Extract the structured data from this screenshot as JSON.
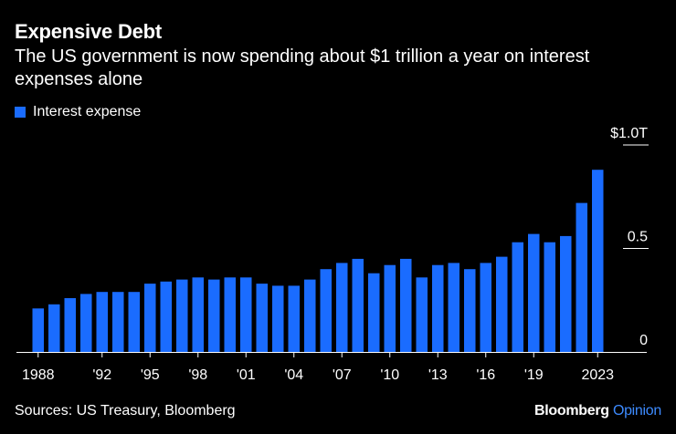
{
  "header": {
    "title": "Expensive Debt",
    "subtitle": "The US government is now spending about $1 trillion a year on interest expenses alone"
  },
  "footer": {
    "source": "Sources: US Treasury, Bloomberg",
    "brand_name": "Bloomberg",
    "brand_section": "Opinion"
  },
  "colors": {
    "bar": "#1a6cff",
    "background": "#000000",
    "text": "#ffffff",
    "brand_accent": "#3d8bff"
  },
  "chart_data": {
    "type": "bar",
    "title": "Expensive Debt",
    "subtitle": "The US government is now spending about $1 trillion a year on interest expenses alone",
    "legend": {
      "position": "top-left",
      "entries": [
        "Interest expense"
      ]
    },
    "categories": [
      "1988",
      "1989",
      "1990",
      "1991",
      "1992",
      "1993",
      "1994",
      "1995",
      "1996",
      "1997",
      "1998",
      "1999",
      "2000",
      "2001",
      "2002",
      "2003",
      "2004",
      "2005",
      "2006",
      "2007",
      "2008",
      "2009",
      "2010",
      "2011",
      "2012",
      "2013",
      "2014",
      "2015",
      "2016",
      "2017",
      "2018",
      "2019",
      "2020",
      "2021",
      "2022",
      "2023"
    ],
    "series": [
      {
        "name": "Interest expense",
        "values": [
          0.21,
          0.23,
          0.26,
          0.28,
          0.29,
          0.29,
          0.29,
          0.33,
          0.34,
          0.35,
          0.36,
          0.35,
          0.36,
          0.36,
          0.33,
          0.32,
          0.32,
          0.35,
          0.4,
          0.43,
          0.45,
          0.38,
          0.42,
          0.45,
          0.36,
          0.42,
          0.43,
          0.4,
          0.43,
          0.46,
          0.53,
          0.57,
          0.53,
          0.56,
          0.72,
          0.88
        ]
      }
    ],
    "x_tick_labels": [
      {
        "index": 0,
        "label": "1988"
      },
      {
        "index": 4,
        "label": "'92"
      },
      {
        "index": 7,
        "label": "'95"
      },
      {
        "index": 10,
        "label": "'98"
      },
      {
        "index": 13,
        "label": "'01"
      },
      {
        "index": 16,
        "label": "'04"
      },
      {
        "index": 19,
        "label": "'07"
      },
      {
        "index": 22,
        "label": "'10"
      },
      {
        "index": 25,
        "label": "'13"
      },
      {
        "index": 28,
        "label": "'16"
      },
      {
        "index": 31,
        "label": "'19"
      },
      {
        "index": 35,
        "label": "2023"
      }
    ],
    "y_ticks": [
      {
        "value": 0,
        "label": "0"
      },
      {
        "value": 0.5,
        "label": "0.5"
      },
      {
        "value": 1.0,
        "label": "$1.0T"
      }
    ],
    "ylim": [
      0,
      1.0
    ],
    "xlabel": "",
    "ylabel": "",
    "grid": false
  }
}
